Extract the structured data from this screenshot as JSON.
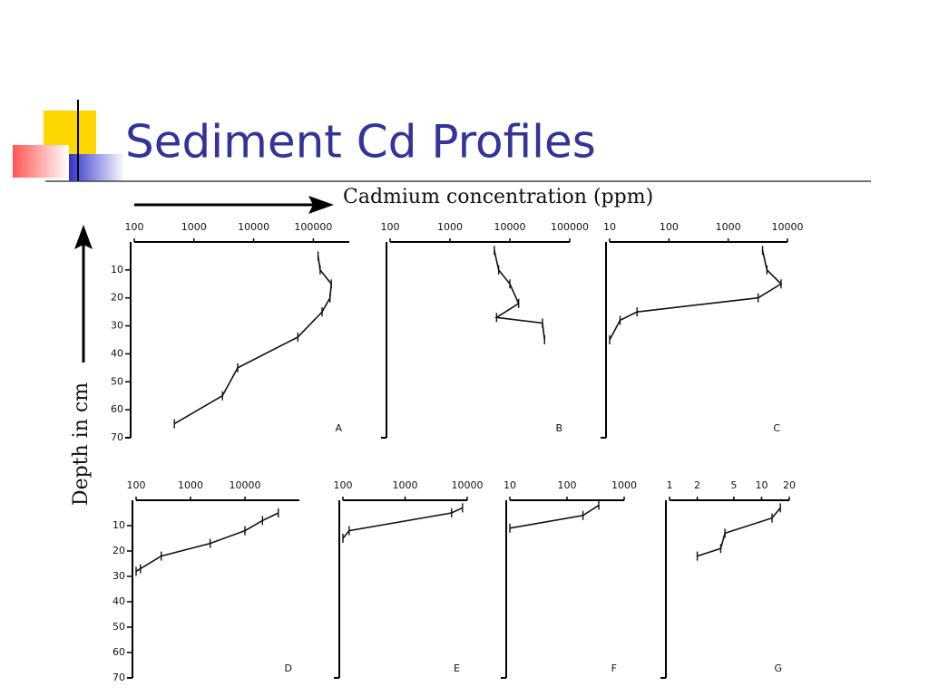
{
  "slide": {
    "title": "Sediment Cd Profiles"
  },
  "figure": {
    "x_label": "Cadmium concentration (ppm)",
    "y_label": "Depth in cm"
  },
  "chart_data": [
    {
      "type": "line",
      "label": "A",
      "log_scale": true,
      "xlim": [
        0,
        70
      ],
      "xticks": [
        10,
        20,
        30,
        40,
        50,
        60,
        70
      ],
      "ylim": [
        100,
        400000
      ],
      "yticks": [
        100,
        1000,
        10000,
        100000
      ],
      "x": [
        5,
        10,
        15,
        20,
        25,
        34,
        45,
        55,
        65
      ],
      "values": [
        120000,
        130000,
        200000,
        190000,
        140000,
        55000,
        5400,
        3000,
        470
      ]
    },
    {
      "type": "line",
      "label": "B",
      "log_scale": true,
      "xlim": [
        0,
        70
      ],
      "ylim": [
        100,
        100000
      ],
      "yticks": [
        100,
        1000,
        10000,
        100000
      ],
      "x": [
        3,
        10,
        15,
        22,
        27,
        29,
        35
      ],
      "values": [
        5500,
        6500,
        10000,
        14000,
        6000,
        35000,
        38000
      ]
    },
    {
      "type": "line",
      "label": "C",
      "log_scale": true,
      "xlim": [
        0,
        70
      ],
      "ylim": [
        10,
        10000
      ],
      "yticks": [
        10,
        100,
        1000,
        10000
      ],
      "x": [
        3,
        10,
        15,
        20,
        25,
        28,
        35
      ],
      "values": [
        3800,
        4500,
        7800,
        3200,
        29,
        15,
        10
      ]
    },
    {
      "type": "line",
      "label": "D",
      "log_scale": true,
      "xlim": [
        0,
        70
      ],
      "xticks": [
        10,
        20,
        30,
        40,
        50,
        60,
        70
      ],
      "ylim": [
        100,
        100000
      ],
      "yticks": [
        100,
        1000,
        10000
      ],
      "x": [
        5,
        8,
        12,
        17,
        22,
        27,
        28
      ],
      "values": [
        41000,
        21000,
        10000,
        2300,
        290,
        120,
        100
      ]
    },
    {
      "type": "line",
      "label": "E",
      "log_scale": true,
      "xlim": [
        0,
        70
      ],
      "ylim": [
        100,
        10000
      ],
      "yticks": [
        100,
        1000,
        10000
      ],
      "x": [
        3,
        5,
        12,
        15
      ],
      "values": [
        8400,
        5600,
        126,
        100
      ]
    },
    {
      "type": "line",
      "label": "F",
      "log_scale": true,
      "xlim": [
        0,
        70
      ],
      "ylim": [
        10,
        1000
      ],
      "yticks": [
        10,
        100,
        1000
      ],
      "x": [
        2,
        6,
        11
      ],
      "values": [
        360,
        190,
        10
      ]
    },
    {
      "type": "line",
      "label": "G",
      "log_scale": true,
      "xlim": [
        0,
        70
      ],
      "ylim": [
        1,
        20
      ],
      "yticks": [
        1,
        2,
        5,
        10,
        20
      ],
      "x": [
        3,
        7,
        13,
        19,
        22
      ],
      "values": [
        16,
        13,
        4,
        3.6,
        2
      ]
    }
  ]
}
